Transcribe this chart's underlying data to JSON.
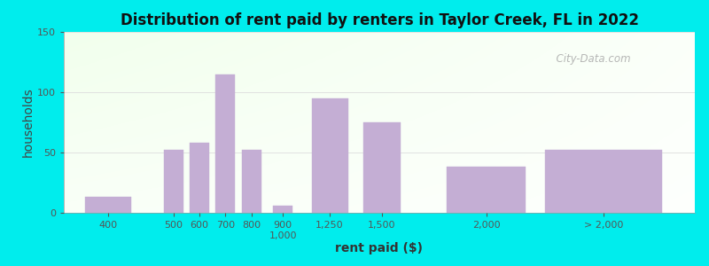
{
  "title": "Distribution of rent paid by renters in Taylor Creek, FL in 2022",
  "xlabel": "rent paid ($)",
  "ylabel": "households",
  "bar_color": "#c4aed4",
  "background_outer": "#00eded",
  "background_plot_topleft": "#d4ecd0",
  "background_plot_topright": "#e8f4f8",
  "background_plot_bottom": "#f0faf0",
  "ylim": [
    0,
    150
  ],
  "yticks": [
    0,
    50,
    100,
    150
  ],
  "values": [
    13,
    52,
    58,
    115,
    52,
    6,
    95,
    75,
    38,
    52
  ],
  "tick_labels": [
    "400",
    "500",
    "600",
    "700",
    "800",
    "900\n1,000",
    "1,250",
    "1,500",
    "2,000",
    "> 2,000"
  ],
  "watermark": "  City-Data.com",
  "title_fontsize": 12,
  "axis_label_fontsize": 10,
  "tick_fontsize": 8
}
